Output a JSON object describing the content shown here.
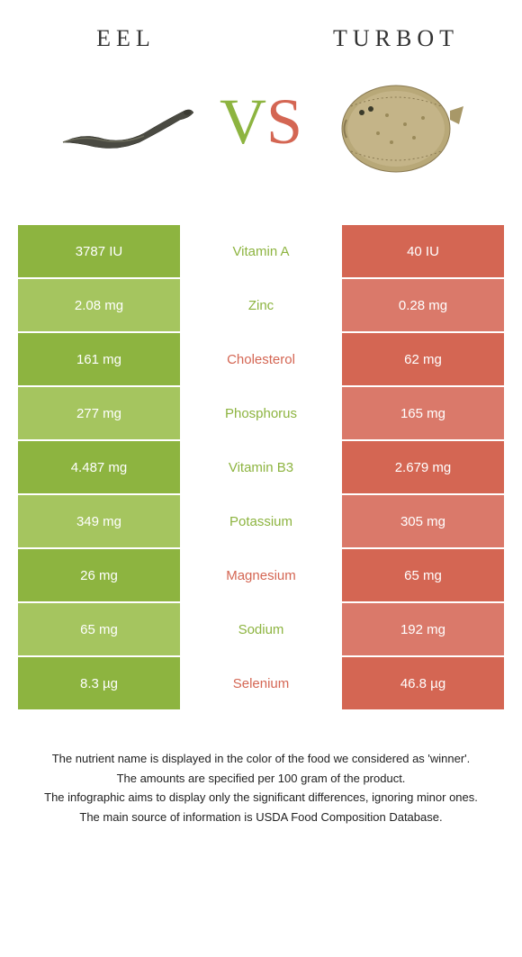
{
  "food_left": {
    "title": "Eel"
  },
  "food_right": {
    "title": "Turbot"
  },
  "vs": {
    "v": "V",
    "s": "S"
  },
  "colors": {
    "left_dark": "#8db440",
    "left_light": "#a5c55f",
    "right_dark": "#d46653",
    "right_light": "#da796a",
    "mid_text_green": "#8db440",
    "mid_text_red": "#d46653"
  },
  "rows": [
    {
      "left": "3787 IU",
      "mid": "Vitamin A",
      "right": "40 IU",
      "winner": "left"
    },
    {
      "left": "2.08 mg",
      "mid": "Zinc",
      "right": "0.28 mg",
      "winner": "left"
    },
    {
      "left": "161 mg",
      "mid": "Cholesterol",
      "right": "62 mg",
      "winner": "right"
    },
    {
      "left": "277 mg",
      "mid": "Phosphorus",
      "right": "165 mg",
      "winner": "left"
    },
    {
      "left": "4.487 mg",
      "mid": "Vitamin B3",
      "right": "2.679 mg",
      "winner": "left"
    },
    {
      "left": "349 mg",
      "mid": "Potassium",
      "right": "305 mg",
      "winner": "left"
    },
    {
      "left": "26 mg",
      "mid": "Magnesium",
      "right": "65 mg",
      "winner": "right"
    },
    {
      "left": "65 mg",
      "mid": "Sodium",
      "right": "192 mg",
      "winner": "left"
    },
    {
      "left": "8.3 µg",
      "mid": "Selenium",
      "right": "46.8 µg",
      "winner": "right"
    }
  ],
  "footer": {
    "l1": "The nutrient name is displayed in the color of the food we considered as 'winner'.",
    "l2": "The amounts are specified per 100 gram of the product.",
    "l3": "The infographic aims to display only the significant differences, ignoring minor ones.",
    "l4": "The main source of information is USDA Food Composition Database."
  }
}
